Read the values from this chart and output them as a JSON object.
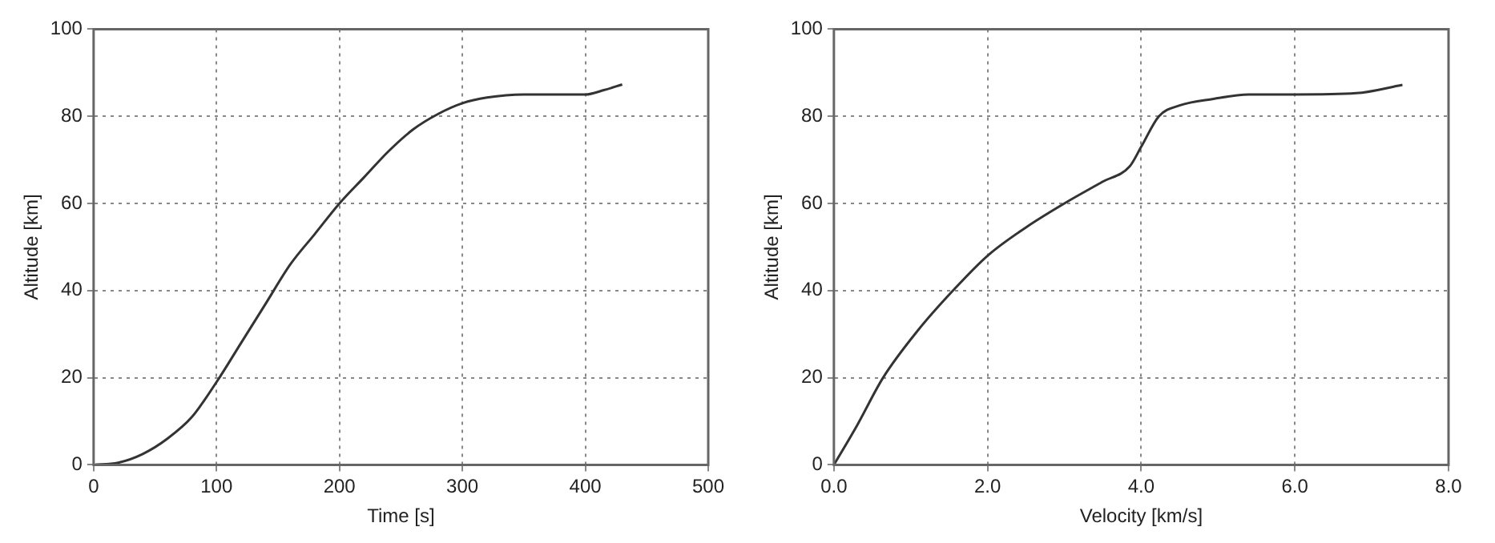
{
  "chart_data": [
    {
      "type": "line",
      "xlabel": "Time [s]",
      "ylabel": "Altitude [km]",
      "color": "#333333",
      "grid": true,
      "x": [
        0,
        20,
        40,
        60,
        80,
        100,
        120,
        140,
        160,
        180,
        200,
        220,
        240,
        260,
        280,
        300,
        320,
        350,
        400,
        415,
        430
      ],
      "values": [
        0,
        0.5,
        2.5,
        6,
        11,
        19,
        28,
        37,
        46,
        53,
        60,
        66,
        72,
        77,
        80.5,
        83,
        84.3,
        85,
        85,
        86,
        87.3
      ],
      "xlim": [
        0,
        500
      ],
      "xticks": [
        0,
        100,
        200,
        300,
        400,
        500
      ],
      "ylim": [
        0,
        100
      ],
      "yticks": [
        0,
        20,
        40,
        60,
        80,
        100
      ]
    },
    {
      "type": "line",
      "xlabel": "Velocity [km/s]",
      "ylabel": "Altitude [km]",
      "color": "#333333",
      "grid": true,
      "x": [
        0,
        0.3,
        0.64,
        1.1,
        1.55,
        2.0,
        2.5,
        3.0,
        3.5,
        3.85,
        4.0,
        4.23,
        4.5,
        4.94,
        5.4,
        6.0,
        6.8,
        7.4
      ],
      "values": [
        0,
        9,
        20,
        31,
        40,
        48,
        54.5,
        60,
        65,
        68.5,
        73,
        80,
        82.5,
        84,
        85,
        85,
        85.3,
        87.2
      ],
      "xlim": [
        0,
        8
      ],
      "xticks": [
        {
          "value": 0,
          "label": "0.0"
        },
        {
          "value": 2,
          "label": "2.0"
        },
        {
          "value": 4,
          "label": "4.0"
        },
        {
          "value": 6,
          "label": "6.0"
        },
        {
          "value": 8,
          "label": "8.0"
        }
      ],
      "ylim": [
        0,
        100
      ],
      "yticks": [
        0,
        20,
        40,
        60,
        80,
        100
      ]
    }
  ]
}
